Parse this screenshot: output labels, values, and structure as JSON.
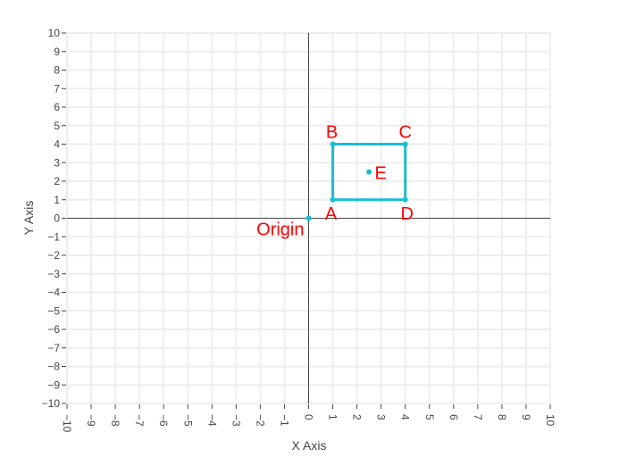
{
  "chart_data": {
    "type": "scatter",
    "xlabel": "X Axis",
    "ylabel": "Y Axis",
    "xlim": [
      -10,
      10
    ],
    "ylim": [
      -10,
      10
    ],
    "xticks": [
      -10,
      -9,
      -8,
      -7,
      -6,
      -5,
      -4,
      -3,
      -2,
      -1,
      0,
      1,
      2,
      3,
      4,
      5,
      6,
      7,
      8,
      9,
      10
    ],
    "yticks": [
      -10,
      -9,
      -8,
      -7,
      -6,
      -5,
      -4,
      -3,
      -2,
      -1,
      0,
      1,
      2,
      3,
      4,
      5,
      6,
      7,
      8,
      9,
      10
    ],
    "grid": true,
    "polygon": {
      "vertices": [
        [
          1,
          1
        ],
        [
          1,
          4
        ],
        [
          4,
          4
        ],
        [
          4,
          1
        ]
      ],
      "closed": true
    },
    "points": [
      {
        "label": "Origin",
        "x": 0,
        "y": 0
      },
      {
        "label": "A",
        "x": 1,
        "y": 1
      },
      {
        "label": "B",
        "x": 1,
        "y": 4
      },
      {
        "label": "C",
        "x": 4,
        "y": 4
      },
      {
        "label": "D",
        "x": 4,
        "y": 1
      },
      {
        "label": "E",
        "x": 2.5,
        "y": 2.5
      }
    ]
  },
  "colors": {
    "trace": "#17becf",
    "label": "#ff0000",
    "grid": "#eeeeee",
    "zeroline": "#444444",
    "text": "#444444"
  }
}
